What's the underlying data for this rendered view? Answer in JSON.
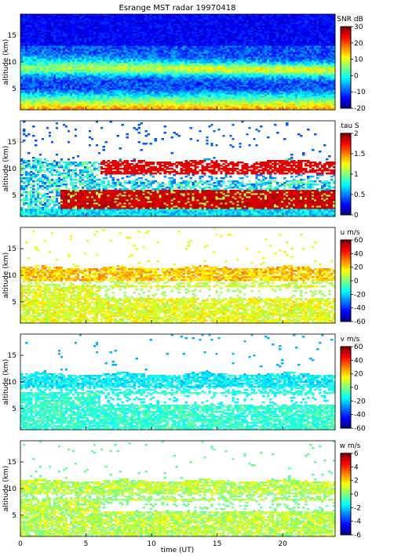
{
  "title": "Esrange MST radar 19970418",
  "xlabel": "time (UT)",
  "colorscale": "jet",
  "chart_data": [
    {
      "type": "heatmap",
      "id": "snr",
      "ylabel": "altitude (km)",
      "colorbar_label": "SNR dB",
      "clim": [
        -20,
        30
      ],
      "colorbar_ticks": [
        "30",
        "20",
        "10",
        "0",
        "-10",
        "-20"
      ],
      "xlim": [
        0,
        24
      ],
      "ylim": [
        1,
        19
      ],
      "xticks": [
        "0",
        "5",
        "10",
        "15",
        "20"
      ],
      "yticks": [
        "5",
        "10",
        "15"
      ],
      "x_tick_labels_shown": false
    },
    {
      "type": "heatmap",
      "id": "tau",
      "ylabel": "altitude (km)",
      "colorbar_label": "tau S",
      "clim": [
        0,
        2
      ],
      "colorbar_ticks": [
        "2",
        "1.5",
        "1",
        "0.5",
        "0"
      ],
      "xlim": [
        0,
        24
      ],
      "ylim": [
        1,
        19
      ],
      "xticks": [
        "0",
        "5",
        "10",
        "15",
        "20"
      ],
      "yticks": [
        "5",
        "10",
        "15"
      ],
      "x_tick_labels_shown": false
    },
    {
      "type": "heatmap",
      "id": "u",
      "ylabel": "altitude (km)",
      "colorbar_label": "u m/s",
      "clim": [
        -60,
        60
      ],
      "colorbar_ticks": [
        "60",
        "40",
        "20",
        "0",
        "-20",
        "-40",
        "-60"
      ],
      "xlim": [
        0,
        24
      ],
      "ylim": [
        1,
        19
      ],
      "xticks": [
        "0",
        "5",
        "10",
        "15",
        "20"
      ],
      "yticks": [
        "5",
        "10",
        "15"
      ],
      "x_tick_labels_shown": false
    },
    {
      "type": "heatmap",
      "id": "v",
      "ylabel": "altitude (km)",
      "colorbar_label": "v m/s",
      "clim": [
        -60,
        60
      ],
      "colorbar_ticks": [
        "60",
        "40",
        "20",
        "0",
        "-20",
        "-40",
        "-60"
      ],
      "xlim": [
        0,
        24
      ],
      "ylim": [
        1,
        19
      ],
      "xticks": [
        "0",
        "5",
        "10",
        "15",
        "20"
      ],
      "yticks": [
        "5",
        "10",
        "15"
      ],
      "x_tick_labels_shown": false
    },
    {
      "type": "heatmap",
      "id": "w",
      "ylabel": "altitude (km)",
      "colorbar_label": "w m/s",
      "clim": [
        -6,
        6
      ],
      "colorbar_ticks": [
        "6",
        "4",
        "2",
        "0",
        "-2",
        "-4",
        "-6"
      ],
      "xlim": [
        0,
        24
      ],
      "ylim": [
        1,
        19
      ],
      "xticks": [
        "0",
        "5",
        "10",
        "15",
        "20"
      ],
      "yticks": [
        "5",
        "10",
        "15"
      ],
      "x_tick_labels_shown": true
    }
  ]
}
